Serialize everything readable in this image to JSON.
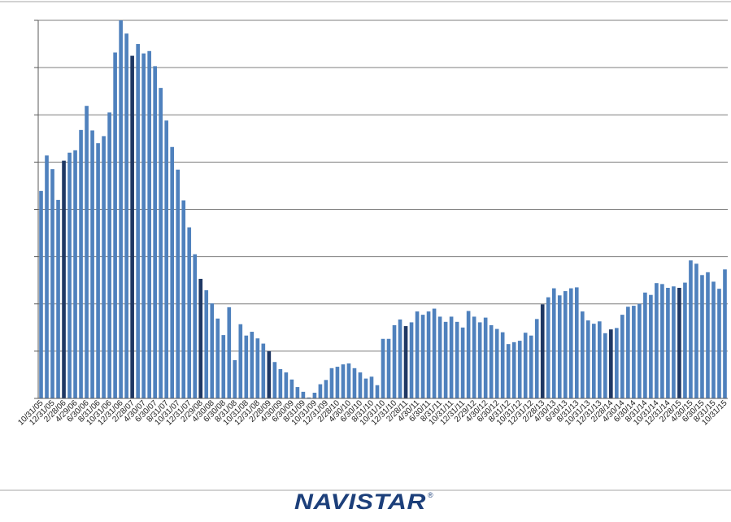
{
  "brand": {
    "logo_text": "NAVISTAR",
    "registered_mark": "®",
    "color": "#1c3f7a"
  },
  "colors": {
    "bar": "#4f81bd",
    "bar_highlight": "#1f3864",
    "grid": "#7f7f7f",
    "axis": "#595959",
    "separator": "#a6a6a6"
  },
  "chart_data": {
    "type": "bar",
    "title": "",
    "xlabel": "",
    "ylabel": "",
    "ylim": [
      0,
      8
    ],
    "grid": true,
    "y_tick_labels_shown": false,
    "categories": [
      "10/31/05",
      "",
      "12/31/05",
      "",
      "2/28/06",
      "",
      "4/29/06",
      "",
      "6/30/06",
      "",
      "8/31/06",
      "",
      "10/31/06",
      "",
      "12/31/06",
      "",
      "2/28/07",
      "",
      "4/30/07",
      "",
      "6/30/07",
      "",
      "8/31/07",
      "",
      "10/31/07",
      "",
      "12/31/07",
      "",
      "2/29/08",
      "",
      "4/30/08",
      "",
      "6/30/08",
      "",
      "8/31/08",
      "",
      "10/31/08",
      "",
      "12/31/08",
      "",
      "2/28/09",
      "",
      "4/30/09",
      "",
      "6/30/09",
      "",
      "8/31/09",
      "",
      "10/31/09",
      "",
      "12/31/09",
      "",
      "2/28/10",
      "",
      "4/30/10",
      "",
      "6/30/10",
      "",
      "8/31/10",
      "",
      "10/31/10",
      "",
      "12/31/10",
      "",
      "2/28/11",
      "",
      "4/30/11",
      "",
      "6/30/11",
      "",
      "8/31/11",
      "",
      "10/31/11",
      "",
      "12/31/11",
      "",
      "2/29/12",
      "",
      "4/30/12",
      "",
      "6/30/12",
      "",
      "8/31/12",
      "",
      "10/31/12",
      "",
      "12/31/12",
      "",
      "2/28/13",
      "",
      "4/30/13",
      "",
      "6/30/13",
      "",
      "8/31/13",
      "",
      "10/31/13",
      "",
      "12/31/13",
      "",
      "2/28/14",
      "",
      "4/30/14",
      "",
      "6/30/14",
      "",
      "8/31/14",
      "",
      "10/31/14",
      "",
      "12/31/14",
      "",
      "2/28/15",
      "",
      "4/30/15",
      "",
      "6/30/15",
      "",
      "8/31/15",
      "",
      "10/31/15"
    ],
    "values": [
      4.39,
      5.14,
      4.85,
      4.2,
      5.03,
      5.2,
      5.25,
      5.68,
      6.19,
      5.67,
      5.4,
      5.55,
      6.05,
      7.32,
      8.0,
      7.72,
      7.25,
      7.5,
      7.3,
      7.35,
      7.03,
      6.57,
      5.88,
      5.32,
      4.84,
      4.19,
      3.62,
      3.05,
      2.53,
      2.29,
      2.01,
      1.69,
      1.34,
      1.93,
      0.81,
      1.57,
      1.33,
      1.41,
      1.27,
      1.16,
      1.0,
      0.77,
      0.62,
      0.55,
      0.4,
      0.24,
      0.14,
      0.02,
      0.12,
      0.3,
      0.39,
      0.64,
      0.67,
      0.72,
      0.74,
      0.64,
      0.55,
      0.42,
      0.46,
      0.28,
      1.26,
      1.26,
      1.55,
      1.67,
      1.53,
      1.61,
      1.84,
      1.77,
      1.84,
      1.9,
      1.73,
      1.62,
      1.73,
      1.62,
      1.5,
      1.85,
      1.73,
      1.61,
      1.71,
      1.55,
      1.47,
      1.4,
      1.15,
      1.19,
      1.22,
      1.39,
      1.33,
      1.68,
      1.99,
      2.14,
      2.33,
      2.18,
      2.27,
      2.33,
      2.35,
      1.84,
      1.65,
      1.58,
      1.63,
      1.38,
      1.46,
      1.49,
      1.77,
      1.94,
      1.96,
      2.0,
      2.24,
      2.19,
      2.44,
      2.42,
      2.34,
      2.37,
      2.34,
      2.45,
      2.92,
      2.85,
      2.61,
      2.67,
      2.47,
      2.32,
      2.73
    ],
    "highlight_indices": [
      4,
      16,
      28,
      40,
      64,
      88,
      100,
      112
    ]
  }
}
